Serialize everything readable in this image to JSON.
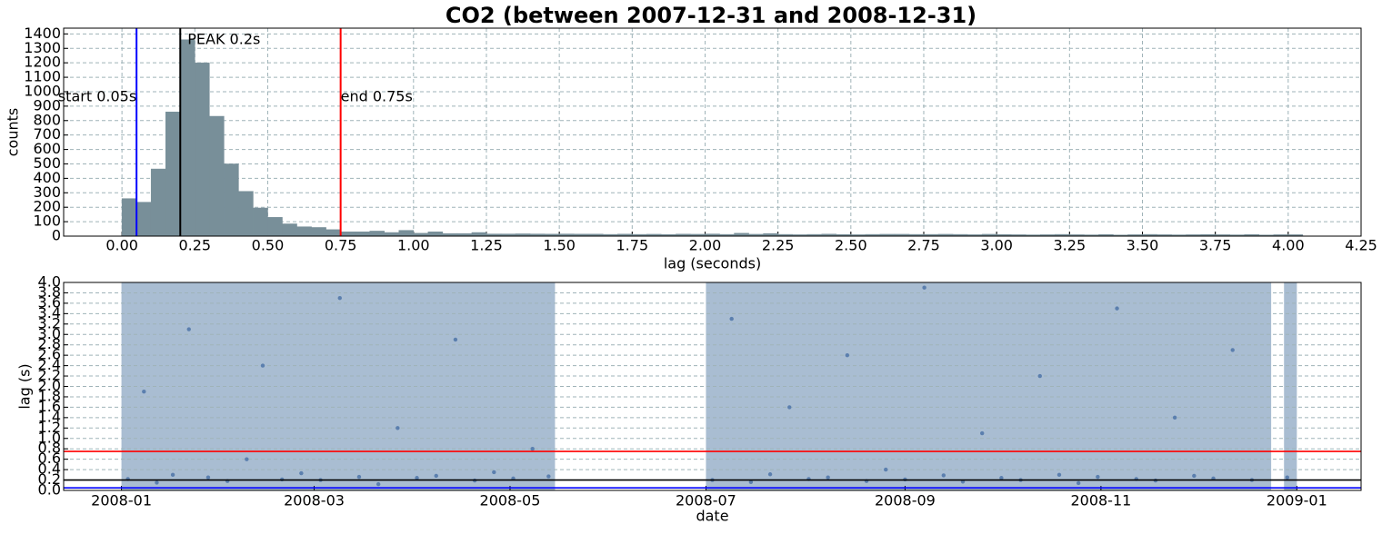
{
  "chart_data": [
    {
      "type": "histogram",
      "title": "CO2 (between 2007-12-31 and 2008-12-31)",
      "x_label": "lag (seconds)",
      "y_label": "counts",
      "color": "#788f99",
      "bins": [
        0,
        0.05,
        0.1,
        0.15,
        0.2,
        0.25,
        0.3,
        0.35,
        0.4,
        0.45,
        0.5,
        0.55,
        0.6,
        0.65,
        0.7,
        0.75,
        0.8,
        0.85,
        0.9,
        0.95,
        1,
        1.05,
        1.1,
        1.15,
        1.2,
        1.25,
        1.3,
        1.35,
        1.4,
        1.45,
        1.5,
        1.55,
        1.6,
        1.65,
        1.7,
        1.75,
        1.8,
        1.85,
        1.9,
        1.95,
        2,
        2.05,
        2.1,
        2.15,
        2.2,
        2.25,
        2.3,
        2.35,
        2.4,
        2.45,
        2.5,
        2.55,
        2.6,
        2.65,
        2.7,
        2.75,
        2.8,
        2.85,
        2.9,
        2.95,
        3,
        3.05,
        3.1,
        3.15,
        3.2,
        3.25,
        3.3,
        3.35,
        3.4,
        3.45,
        3.5,
        3.55,
        3.6,
        3.65,
        3.7,
        3.75,
        3.8,
        3.85,
        3.9,
        3.95,
        4,
        4.05
      ],
      "values": [
        260,
        235,
        465,
        860,
        1360,
        1200,
        830,
        500,
        310,
        195,
        130,
        85,
        65,
        60,
        45,
        30,
        30,
        35,
        25,
        40,
        20,
        30,
        18,
        18,
        25,
        15,
        15,
        16,
        15,
        14,
        15,
        14,
        14,
        12,
        14,
        12,
        13,
        11,
        14,
        13,
        15,
        12,
        20,
        13,
        18,
        12,
        10,
        12,
        14,
        11,
        10,
        12,
        13,
        13,
        12,
        12,
        13,
        12,
        10,
        13,
        11,
        10,
        9,
        10,
        12,
        10,
        9,
        11,
        8,
        10,
        12,
        10,
        9,
        10,
        11,
        10,
        9,
        11,
        8,
        10,
        10
      ],
      "xlim": [
        -0.2,
        4.25
      ],
      "ylim": [
        0,
        1440
      ],
      "xticks": [
        {
          "value": 0,
          "label": "0.00"
        },
        0.25,
        {
          "value": 0.5,
          "label": "0.50"
        },
        0.75,
        {
          "value": 1,
          "label": "1.00"
        },
        1.25,
        {
          "value": 1.5,
          "label": "1.50"
        },
        1.75,
        {
          "value": 2,
          "label": "2.00"
        },
        2.25,
        {
          "value": 2.5,
          "label": "2.50"
        },
        2.75,
        {
          "value": 3,
          "label": "3.00"
        },
        3.25,
        {
          "value": 3.5,
          "label": "3.50"
        },
        3.75,
        {
          "value": 4,
          "label": "4.00"
        },
        4.25
      ],
      "yticks": [
        0,
        100,
        200,
        300,
        400,
        500,
        600,
        700,
        800,
        900,
        1000,
        1100,
        1200,
        1300,
        1400
      ],
      "grid": "both",
      "vlines": [
        {
          "label": "start 0.05s",
          "value": 0.05,
          "color": "blue"
        },
        {
          "label": "PEAK 0.2s",
          "value": 0.2,
          "color": "black"
        },
        {
          "label": "end 0.75s",
          "value": 0.75,
          "color": "red"
        }
      ]
    },
    {
      "type": "scatter",
      "x_label": "date",
      "y_label": "lag (s)",
      "color": "#5b7fae",
      "band_color": "#a9bdd2",
      "coverage": [
        [
          "2008-01-01",
          "2008-05-15"
        ],
        [
          "2008-07-01",
          "2008-12-24"
        ],
        [
          "2008-12-28",
          "2009-01-01"
        ]
      ],
      "x": [
        "2008-01-03",
        "2008-01-08",
        "2008-01-12",
        "2008-01-17",
        "2008-01-22",
        "2008-01-28",
        "2008-02-03",
        "2008-02-09",
        "2008-02-14",
        "2008-02-20",
        "2008-02-26",
        "2008-03-03",
        "2008-03-09",
        "2008-03-15",
        "2008-03-21",
        "2008-03-27",
        "2008-04-02",
        "2008-04-08",
        "2008-04-14",
        "2008-04-20",
        "2008-04-26",
        "2008-05-02",
        "2008-05-08",
        "2008-05-13",
        "2008-07-03",
        "2008-07-09",
        "2008-07-15",
        "2008-07-21",
        "2008-07-27",
        "2008-08-02",
        "2008-08-08",
        "2008-08-14",
        "2008-08-20",
        "2008-08-26",
        "2008-09-01",
        "2008-09-07",
        "2008-09-13",
        "2008-09-19",
        "2008-09-25",
        "2008-10-01",
        "2008-10-07",
        "2008-10-13",
        "2008-10-19",
        "2008-10-25",
        "2008-10-31",
        "2008-11-06",
        "2008-11-12",
        "2008-11-18",
        "2008-11-24",
        "2008-11-30",
        "2008-12-06",
        "2008-12-12",
        "2008-12-18",
        "2008-12-29"
      ],
      "values": [
        0.22,
        1.9,
        0.15,
        0.3,
        3.1,
        0.25,
        0.18,
        0.6,
        2.4,
        0.21,
        0.33,
        0.2,
        3.7,
        0.26,
        0.12,
        1.2,
        0.24,
        0.28,
        2.9,
        0.19,
        0.35,
        0.23,
        0.8,
        0.27,
        0.2,
        3.3,
        0.16,
        0.31,
        1.6,
        0.22,
        0.25,
        2.6,
        0.18,
        0.4,
        0.21,
        3.9,
        0.29,
        0.17,
        1.1,
        0.24,
        0.2,
        2.2,
        0.3,
        0.14,
        0.26,
        3.5,
        0.22,
        0.19,
        1.4,
        0.28,
        0.23,
        2.7,
        0.2,
        0.25
      ],
      "xlim": [
        "2007-12-14",
        "2009-01-21"
      ],
      "ylim": [
        0,
        4
      ],
      "xticks": [
        "2008-01",
        "2008-03",
        "2008-05",
        "2008-07",
        "2008-09",
        "2008-11",
        "2009-01"
      ],
      "yticks": [
        {
          "value": 0,
          "label": "0.0"
        },
        0.2,
        0.4,
        0.6,
        0.8,
        {
          "value": 1,
          "label": "1.0"
        },
        1.2,
        1.4,
        1.6,
        1.8,
        {
          "value": 2,
          "label": "2.0"
        },
        2.2,
        2.4,
        2.6,
        2.8,
        {
          "value": 3,
          "label": "3.0"
        },
        3.2,
        3.4,
        3.6,
        3.8,
        {
          "value": 4,
          "label": "4.0"
        }
      ],
      "grid": "y",
      "hlines": [
        {
          "value": 0.75,
          "color": "red"
        },
        {
          "value": 0.2,
          "color": "black"
        },
        {
          "value": 0.05,
          "color": "blue"
        }
      ]
    }
  ]
}
